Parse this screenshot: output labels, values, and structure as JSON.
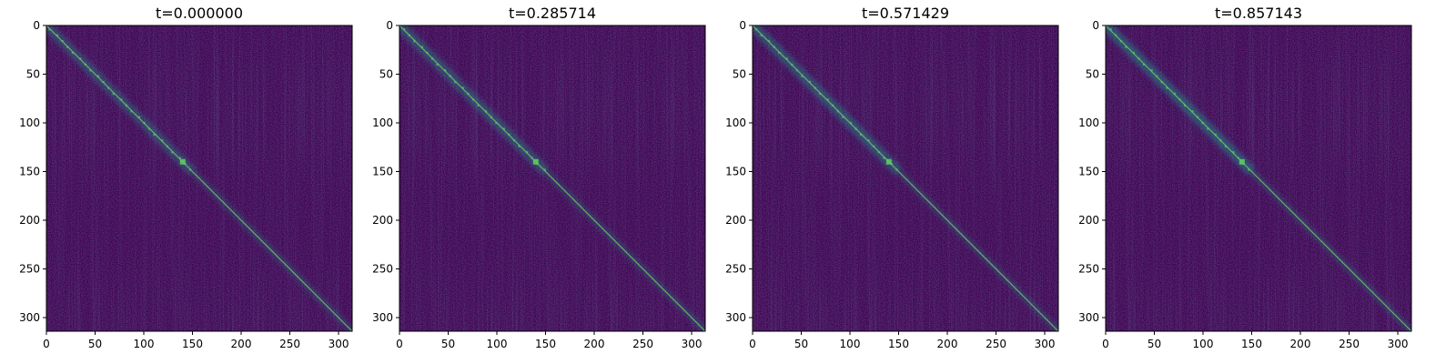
{
  "chart_data": [
    {
      "type": "heatmap",
      "title": "t=0.000000",
      "xlim": [
        0,
        314
      ],
      "ylim": [
        314,
        0
      ],
      "xticks": [
        0,
        50,
        100,
        150,
        200,
        250,
        300
      ],
      "yticks": [
        0,
        50,
        100,
        150,
        200,
        250,
        300
      ],
      "xtick_labels": [
        "0",
        "50",
        "100",
        "150",
        "200",
        "250",
        "300"
      ],
      "ytick_labels": [
        "0",
        "50",
        "100",
        "150",
        "200",
        "250",
        "300"
      ],
      "colormap": "viridis",
      "grid": false,
      "diagonal_hotspot": 140
    },
    {
      "type": "heatmap",
      "title": "t=0.285714",
      "xlim": [
        0,
        314
      ],
      "ylim": [
        314,
        0
      ],
      "xticks": [
        0,
        50,
        100,
        150,
        200,
        250,
        300
      ],
      "yticks": [
        0,
        50,
        100,
        150,
        200,
        250,
        300
      ],
      "xtick_labels": [
        "0",
        "50",
        "100",
        "150",
        "200",
        "250",
        "300"
      ],
      "ytick_labels": [
        "0",
        "50",
        "100",
        "150",
        "200",
        "250",
        "300"
      ],
      "colormap": "viridis",
      "grid": false,
      "diagonal_hotspot": 140
    },
    {
      "type": "heatmap",
      "title": "t=0.571429",
      "xlim": [
        0,
        314
      ],
      "ylim": [
        314,
        0
      ],
      "xticks": [
        0,
        50,
        100,
        150,
        200,
        250,
        300
      ],
      "yticks": [
        0,
        50,
        100,
        150,
        200,
        250,
        300
      ],
      "xtick_labels": [
        "0",
        "50",
        "100",
        "150",
        "200",
        "250",
        "300"
      ],
      "ytick_labels": [
        "0",
        "50",
        "100",
        "150",
        "200",
        "250",
        "300"
      ],
      "colormap": "viridis",
      "grid": false,
      "diagonal_hotspot": 140
    },
    {
      "type": "heatmap",
      "title": "t=0.857143",
      "xlim": [
        0,
        314
      ],
      "ylim": [
        314,
        0
      ],
      "xticks": [
        0,
        50,
        100,
        150,
        200,
        250,
        300
      ],
      "yticks": [
        0,
        50,
        100,
        150,
        200,
        250,
        300
      ],
      "xtick_labels": [
        "0",
        "50",
        "100",
        "150",
        "200",
        "250",
        "300"
      ],
      "ytick_labels": [
        "0",
        "50",
        "100",
        "150",
        "200",
        "250",
        "300"
      ],
      "colormap": "viridis",
      "grid": false,
      "diagonal_hotspot": 140
    }
  ],
  "colors": {
    "background": "#440154",
    "diagonal": "#21918c",
    "diagonal_bright": "#5ec962",
    "hotspot": "#fde725"
  }
}
